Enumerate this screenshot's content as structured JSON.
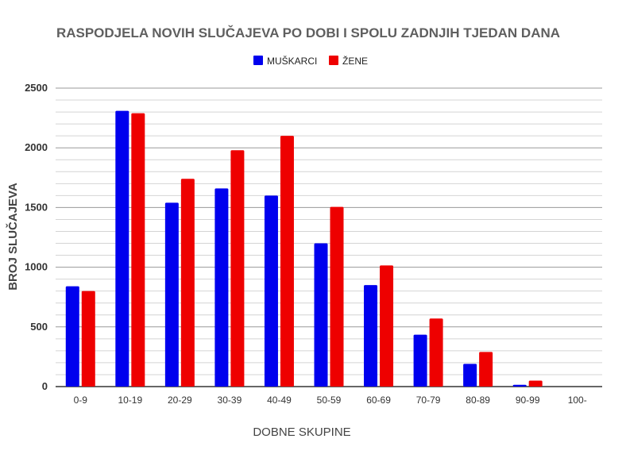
{
  "chart_data": {
    "type": "bar",
    "title": "RASPODJELA NOVIH SLUČAJEVA PO DOBI I SPOLU ZADNJIH TJEDAN DANA",
    "xlabel": "DOBNE SKUPINE",
    "ylabel": "BROJ SLUČAJEVA",
    "categories": [
      "0-9",
      "10-19",
      "20-29",
      "30-39",
      "40-49",
      "50-59",
      "60-69",
      "70-79",
      "80-89",
      "90-99",
      "100-"
    ],
    "series": [
      {
        "name": "MUŠKARCI",
        "color": "#0000ee",
        "values": [
          840,
          2310,
          1540,
          1660,
          1600,
          1200,
          850,
          435,
          190,
          15,
          0
        ]
      },
      {
        "name": "ŽENE",
        "color": "#ee0000",
        "values": [
          800,
          2290,
          1740,
          1980,
          2100,
          1505,
          1015,
          570,
          290,
          50,
          0
        ]
      }
    ],
    "ylim": [
      0,
      2500
    ],
    "yticks": [
      0,
      500,
      1000,
      1500,
      2000,
      2500
    ],
    "grid": true,
    "minor_grid": true,
    "legend": "top-center"
  }
}
